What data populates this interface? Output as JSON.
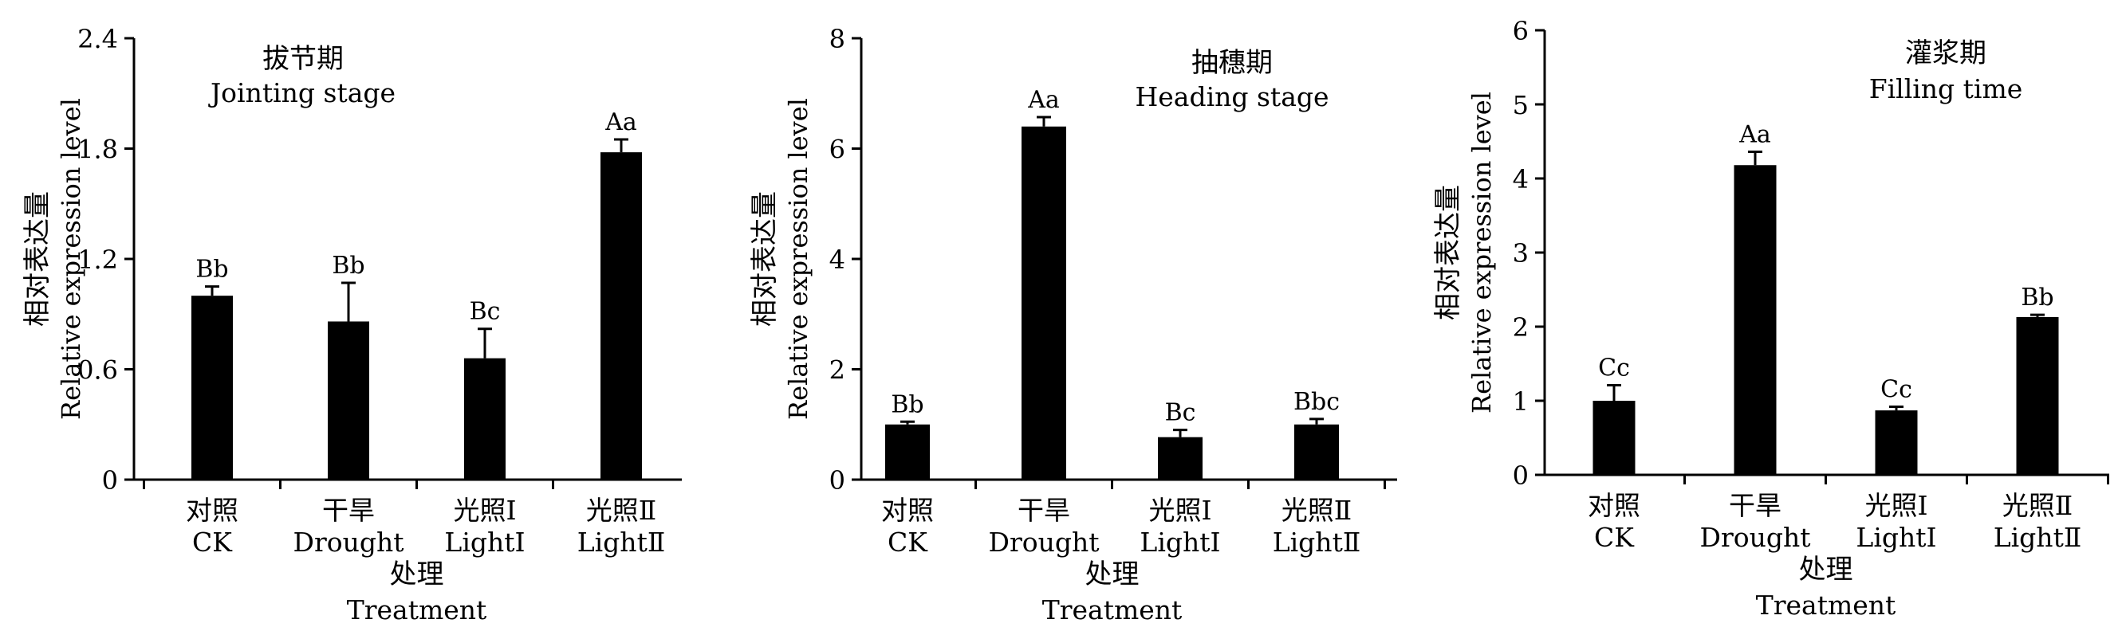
{
  "chart_data": [
    {
      "type": "bar",
      "title_zh": "拔节期",
      "title_en": "Jointing stage",
      "ylabel_zh": "相对表达量",
      "ylabel_en": "Relative expression level",
      "xlabel_zh": "处理",
      "xlabel_en": "Treatment",
      "ylim": [
        0,
        2.4
      ],
      "yticks": [
        "0",
        "0.6",
        "1.2",
        "1.8",
        "2.4"
      ],
      "categories_zh": [
        "对照",
        "干旱",
        "光照Ⅰ",
        "光照Ⅱ"
      ],
      "categories_en": [
        "CK",
        "Drought",
        "LightⅠ",
        "LightⅡ"
      ],
      "values": [
        1.0,
        0.86,
        0.66,
        1.78
      ],
      "errors": [
        0.05,
        0.21,
        0.16,
        0.07
      ],
      "significance": [
        "Bb",
        "Bb",
        "Bc",
        "Aa"
      ],
      "color": "#000000"
    },
    {
      "type": "bar",
      "title_zh": "抽穗期",
      "title_en": "Heading stage",
      "ylabel_zh": "相对表达量",
      "ylabel_en": "Relative expression level",
      "xlabel_zh": "处理",
      "xlabel_en": "Treatment",
      "ylim": [
        0,
        8
      ],
      "yticks": [
        "0",
        "2",
        "4",
        "6",
        "8"
      ],
      "categories_zh": [
        "对照",
        "干旱",
        "光照Ⅰ",
        "光照Ⅱ"
      ],
      "categories_en": [
        "CK",
        "Drought",
        "LightⅠ",
        "LightⅡ"
      ],
      "values": [
        1.0,
        6.4,
        0.77,
        1.0
      ],
      "errors": [
        0.05,
        0.17,
        0.13,
        0.1
      ],
      "significance": [
        "Bb",
        "Aa",
        "Bc",
        "Bbc"
      ],
      "color": "#000000"
    },
    {
      "type": "bar",
      "title_zh": "灌浆期",
      "title_en": "Filling time",
      "ylabel_zh": "相对表达量",
      "ylabel_en": "Relative expression level",
      "xlabel_zh": "处理",
      "xlabel_en": "Treatment",
      "ylim": [
        0,
        6
      ],
      "yticks": [
        "0",
        "1",
        "2",
        "3",
        "4",
        "5",
        "6"
      ],
      "categories_zh": [
        "对照",
        "干旱",
        "光照Ⅰ",
        "光照Ⅱ"
      ],
      "categories_en": [
        "CK",
        "Drought",
        "LightⅠ",
        "LightⅡ"
      ],
      "values": [
        1.0,
        4.18,
        0.87,
        2.13
      ],
      "errors": [
        0.21,
        0.18,
        0.05,
        0.03
      ],
      "significance": [
        "Cc",
        "Aa",
        "Cc",
        "Bb"
      ],
      "color": "#000000"
    }
  ]
}
